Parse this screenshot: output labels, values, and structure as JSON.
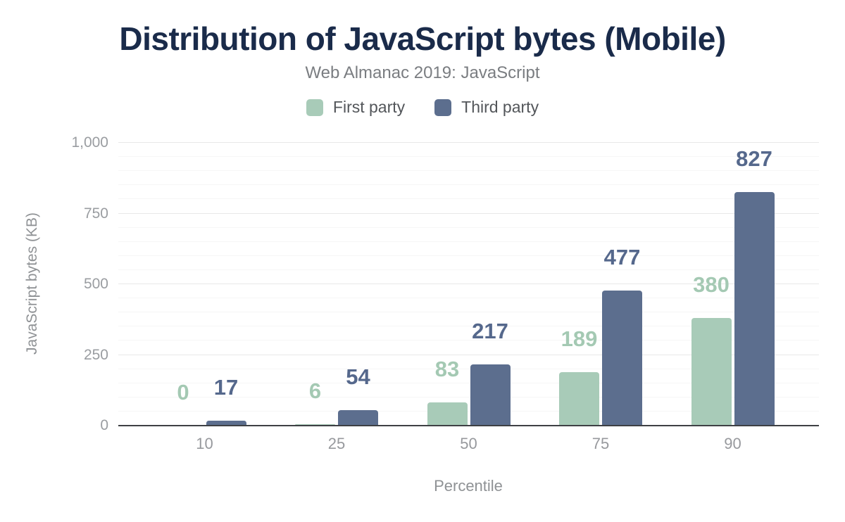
{
  "header": {
    "title": "Distribution of JavaScript bytes (Mobile)",
    "subtitle": "Web Almanac 2019: JavaScript"
  },
  "chart_data": {
    "type": "bar",
    "title": "Distribution of JavaScript bytes (Mobile)",
    "subtitle": "Web Almanac 2019: JavaScript",
    "categories": [
      "10",
      "25",
      "50",
      "75",
      "90"
    ],
    "series": [
      {
        "name": "First party",
        "color": "#a8cbb8",
        "label_color": "#a4c9b3",
        "values": [
          0,
          6,
          83,
          189,
          380
        ]
      },
      {
        "name": "Third party",
        "color": "#5c6e8e",
        "label_color": "#55688c",
        "values": [
          17,
          54,
          217,
          477,
          827
        ]
      }
    ],
    "xlabel": "Percentile",
    "ylabel": "JavaScript bytes (KB)",
    "ylim": [
      0,
      1000
    ],
    "yticks": [
      0,
      250,
      500,
      750,
      1000
    ],
    "ytick_labels": [
      "0",
      "250",
      "500",
      "750",
      "1,000"
    ],
    "minor_grid_step": 50,
    "major_grid_step": 250,
    "grid": true,
    "legend_position": "top",
    "bar_value_labels_shown": true
  },
  "colors": {
    "title": "#1a2b4a",
    "first_party": "#a8cbb8",
    "third_party": "#5c6e8e",
    "axis_line": "#3e4044"
  }
}
